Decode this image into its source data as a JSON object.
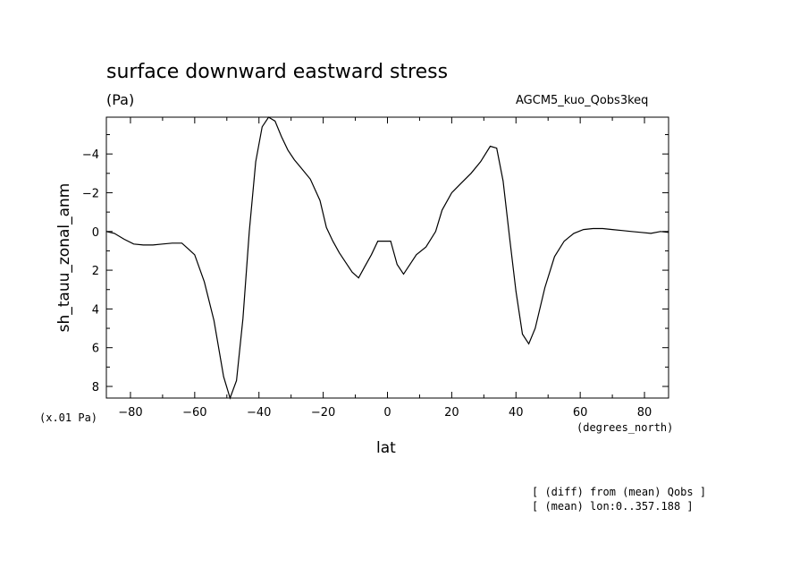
{
  "chart_data": {
    "type": "line",
    "title": "surface downward eastward stress",
    "units": "(Pa)",
    "run_label": "AGCM5_kuo_Qobs3keq",
    "ylabel": "sh_tauu_zonal_anm",
    "xlabel": "lat",
    "x_units": "(degrees_north)",
    "y_scale_note": "(x.01 Pa)",
    "notes": [
      "[ (diff) from (mean) Qobs ]",
      "[ (mean) lon:0..357.188 ]"
    ],
    "xlim": [
      -87.5,
      87.5
    ],
    "ylim_top_to_bottom": [
      -5.9,
      8.6
    ],
    "y_inverted": true,
    "grid": false,
    "x_ticks": [
      -80,
      -60,
      -40,
      -20,
      0,
      20,
      40,
      60,
      80
    ],
    "x_tick_labels": [
      "−80",
      "−60",
      "−40",
      "−20",
      "0",
      "20",
      "40",
      "60",
      "80"
    ],
    "y_ticks": [
      -4,
      -2,
      0,
      2,
      4,
      6,
      8
    ],
    "y_tick_labels": [
      "−4",
      "−2",
      "0",
      "2",
      "4",
      "6",
      "8"
    ],
    "series": [
      {
        "x": [
          -87.5,
          -85,
          -82,
          -79,
          -76,
          -73,
          -70,
          -67,
          -64,
          -62,
          -60,
          -57,
          -54,
          -51,
          -49,
          -47,
          -45,
          -43,
          -41,
          -39,
          -37,
          -35,
          -33,
          -31,
          -29,
          -27,
          -24,
          -21,
          -19,
          -17,
          -15,
          -13,
          -11,
          -9,
          -7,
          -5,
          -3,
          -1,
          1,
          3,
          5,
          7,
          9,
          12,
          15,
          17,
          20,
          23,
          26,
          29,
          32,
          34,
          36,
          38,
          40,
          42,
          44,
          46,
          49,
          52,
          55,
          58,
          61,
          64,
          67,
          70,
          73,
          76,
          79,
          82,
          85,
          87.5
        ],
        "y": [
          0.0,
          0.1,
          0.4,
          0.65,
          0.7,
          0.7,
          0.65,
          0.6,
          0.6,
          0.9,
          1.2,
          2.6,
          4.6,
          7.5,
          8.6,
          7.7,
          4.5,
          0.0,
          -3.6,
          -5.4,
          -5.9,
          -5.7,
          -4.9,
          -4.2,
          -3.7,
          -3.3,
          -2.7,
          -1.6,
          -0.2,
          0.5,
          1.1,
          1.6,
          2.1,
          2.4,
          1.8,
          1.2,
          0.5,
          0.5,
          0.5,
          1.7,
          2.2,
          1.7,
          1.2,
          0.8,
          0.0,
          -1.1,
          -2.0,
          -2.5,
          -3.0,
          -3.6,
          -4.4,
          -4.3,
          -2.6,
          0.3,
          3.1,
          5.3,
          5.8,
          5.0,
          2.9,
          1.3,
          0.5,
          0.1,
          -0.1,
          -0.15,
          -0.15,
          -0.1,
          -0.05,
          0.0,
          0.05,
          0.1,
          0.0,
          0.05
        ]
      }
    ]
  }
}
